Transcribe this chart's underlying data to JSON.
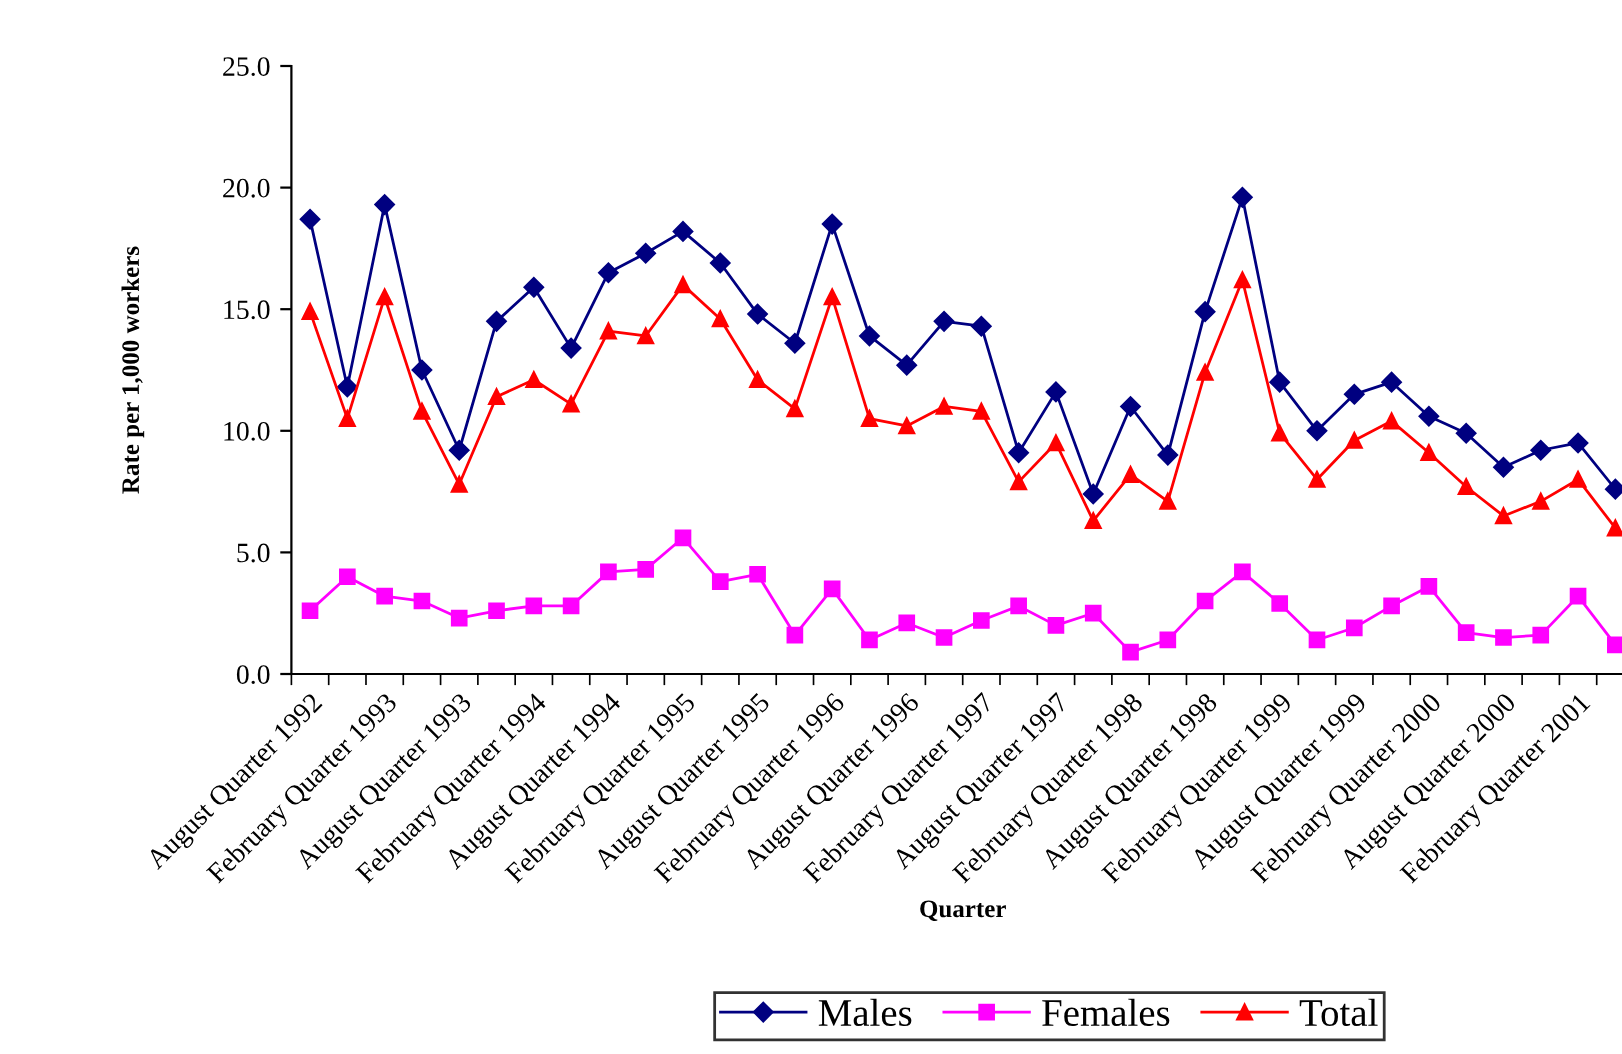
{
  "chart_data": {
    "type": "line",
    "xlabel": "Quarter",
    "ylabel": "Rate per 1,000 workers",
    "categories": [
      "August Quarter 1992",
      null,
      "February Quarter 1993",
      null,
      "August Quarter 1993",
      null,
      "February Quarter 1994",
      null,
      "August Quarter 1994",
      null,
      "February Quarter 1995",
      null,
      "August Quarter 1995",
      null,
      "February Quarter 1996",
      null,
      "August Quarter 1996",
      null,
      "February Quarter 1997",
      null,
      "August Quarter 1997",
      null,
      "February Quarter 1998",
      null,
      "August Quarter 1998",
      null,
      "February Quarter 1999",
      null,
      "August Quarter 1999",
      null,
      "February Quarter 2000",
      null,
      "August Quarter 2000",
      null,
      "February Quarter 2001",
      null
    ],
    "series": [
      {
        "name": "Males",
        "color": "#000080",
        "marker": "diamond",
        "values": [
          18.7,
          11.8,
          19.3,
          12.5,
          9.2,
          14.5,
          15.9,
          13.4,
          16.5,
          17.3,
          18.2,
          16.9,
          14.8,
          13.6,
          18.5,
          13.9,
          12.7,
          14.5,
          14.3,
          9.1,
          11.6,
          7.4,
          11.0,
          9.0,
          14.9,
          19.6,
          12.0,
          10.0,
          11.5,
          12.0,
          10.6,
          9.9,
          8.5,
          9.2,
          9.5,
          7.6
        ]
      },
      {
        "name": "Females",
        "color": "#ff00ff",
        "marker": "square",
        "values": [
          2.6,
          4.0,
          3.2,
          3.0,
          2.3,
          2.6,
          2.8,
          2.8,
          4.2,
          4.3,
          5.6,
          3.8,
          4.1,
          1.6,
          3.5,
          1.4,
          2.1,
          1.5,
          2.2,
          2.8,
          2.0,
          2.5,
          0.9,
          1.4,
          3.0,
          4.2,
          2.9,
          1.4,
          1.9,
          2.8,
          3.6,
          1.7,
          1.5,
          1.6,
          3.2,
          1.2
        ]
      },
      {
        "name": "Total",
        "color": "#ff0000",
        "marker": "triangle",
        "values": [
          14.9,
          10.5,
          15.5,
          10.8,
          7.8,
          11.4,
          12.1,
          11.1,
          14.1,
          13.9,
          16.0,
          14.6,
          12.1,
          10.9,
          15.5,
          10.5,
          10.2,
          11.0,
          10.8,
          7.9,
          9.5,
          6.3,
          8.2,
          7.1,
          12.4,
          16.2,
          9.9,
          8.0,
          9.6,
          10.4,
          9.1,
          7.7,
          6.5,
          7.1,
          8.0,
          6.0
        ]
      }
    ],
    "ylim": [
      0,
      25
    ],
    "yticks": [
      {
        "value": 0,
        "label": "0.0"
      },
      {
        "value": 5,
        "label": "5.0"
      },
      {
        "value": 10,
        "label": "10.0"
      },
      {
        "value": 15,
        "label": "15.0"
      },
      {
        "value": 20,
        "label": "20.0"
      },
      {
        "value": 25,
        "label": "25.0"
      }
    ],
    "grid": false,
    "legend": "bottom",
    "line_style": "solid"
  }
}
